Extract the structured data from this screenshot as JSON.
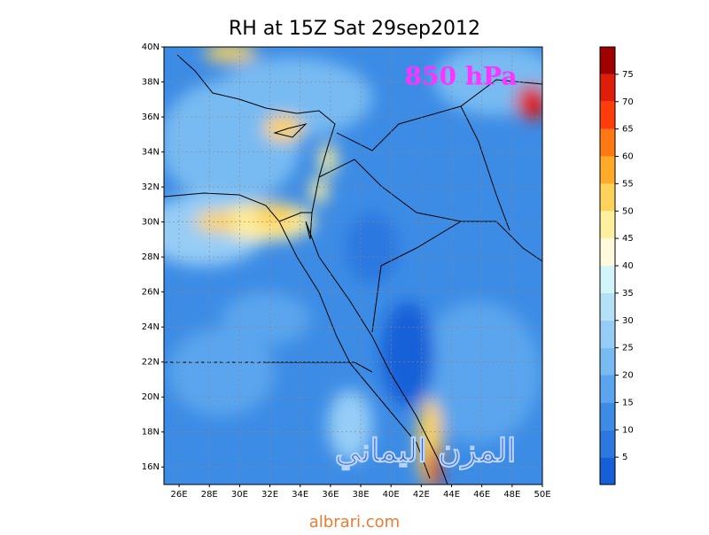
{
  "title": "RH at 15Z Sat 29sep2012",
  "level": "850 hPa",
  "watermark": "المزن اليماني",
  "footer": "albrari.com",
  "map": {
    "lat_labels": [
      "40N",
      "38N",
      "36N",
      "34N",
      "32N",
      "30N",
      "28N",
      "26N",
      "24N",
      "22N",
      "20N",
      "18N",
      "16N"
    ],
    "lon_labels": [
      "26E",
      "28E",
      "30E",
      "32E",
      "34E",
      "36E",
      "38E",
      "40E",
      "42E",
      "44E",
      "46E",
      "48E",
      "50E"
    ]
  },
  "colorbar": {
    "ticks": [
      5,
      10,
      15,
      20,
      25,
      30,
      35,
      40,
      45,
      50,
      55,
      60,
      65,
      70,
      75
    ],
    "colors": [
      "#1560d8",
      "#2a78e0",
      "#3c8ce6",
      "#5aa5ed",
      "#78bbf2",
      "#96cdf6",
      "#b4e1f8",
      "#d2f5fa",
      "#fffadc",
      "#fff0a0",
      "#ffd25a",
      "#ffaa28",
      "#ff7814",
      "#ff3c0a",
      "#dc1e0a",
      "#a00000"
    ]
  }
}
